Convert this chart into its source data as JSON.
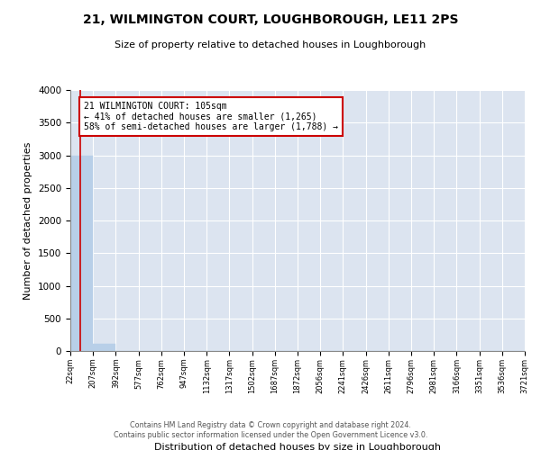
{
  "title": "21, WILMINGTON COURT, LOUGHBOROUGH, LE11 2PS",
  "subtitle": "Size of property relative to detached houses in Loughborough",
  "xlabel": "Distribution of detached houses by size in Loughborough",
  "ylabel": "Number of detached properties",
  "bar_color": "#b8cfe8",
  "bar_edge_color": "#b8cfe8",
  "background_color": "#dce4f0",
  "grid_color": "white",
  "bin_edges": [
    22,
    207,
    392,
    577,
    762,
    947,
    1132,
    1317,
    1502,
    1687,
    1872,
    2056,
    2241,
    2426,
    2611,
    2796,
    2981,
    3166,
    3351,
    3536,
    3721
  ],
  "bar_heights": [
    3000,
    110,
    0,
    0,
    0,
    0,
    0,
    0,
    0,
    0,
    0,
    0,
    0,
    0,
    0,
    0,
    0,
    0,
    0,
    0
  ],
  "property_size": 105,
  "property_line_color": "#cc0000",
  "annotation_text_line1": "21 WILMINGTON COURT: 105sqm",
  "annotation_text_line2": "← 41% of detached houses are smaller (1,265)",
  "annotation_text_line3": "58% of semi-detached houses are larger (1,788) →",
  "annotation_box_color": "#cc0000",
  "annotation_bg": "white",
  "ylim": [
    0,
    4000
  ],
  "yticks": [
    0,
    500,
    1000,
    1500,
    2000,
    2500,
    3000,
    3500,
    4000
  ],
  "tick_labels": [
    "22sqm",
    "207sqm",
    "392sqm",
    "577sqm",
    "762sqm",
    "947sqm",
    "1132sqm",
    "1317sqm",
    "1502sqm",
    "1687sqm",
    "1872sqm",
    "2056sqm",
    "2241sqm",
    "2426sqm",
    "2611sqm",
    "2796sqm",
    "2981sqm",
    "3166sqm",
    "3351sqm",
    "3536sqm",
    "3721sqm"
  ],
  "footer_line1": "Contains HM Land Registry data © Crown copyright and database right 2024.",
  "footer_line2": "Contains public sector information licensed under the Open Government Licence v3.0."
}
